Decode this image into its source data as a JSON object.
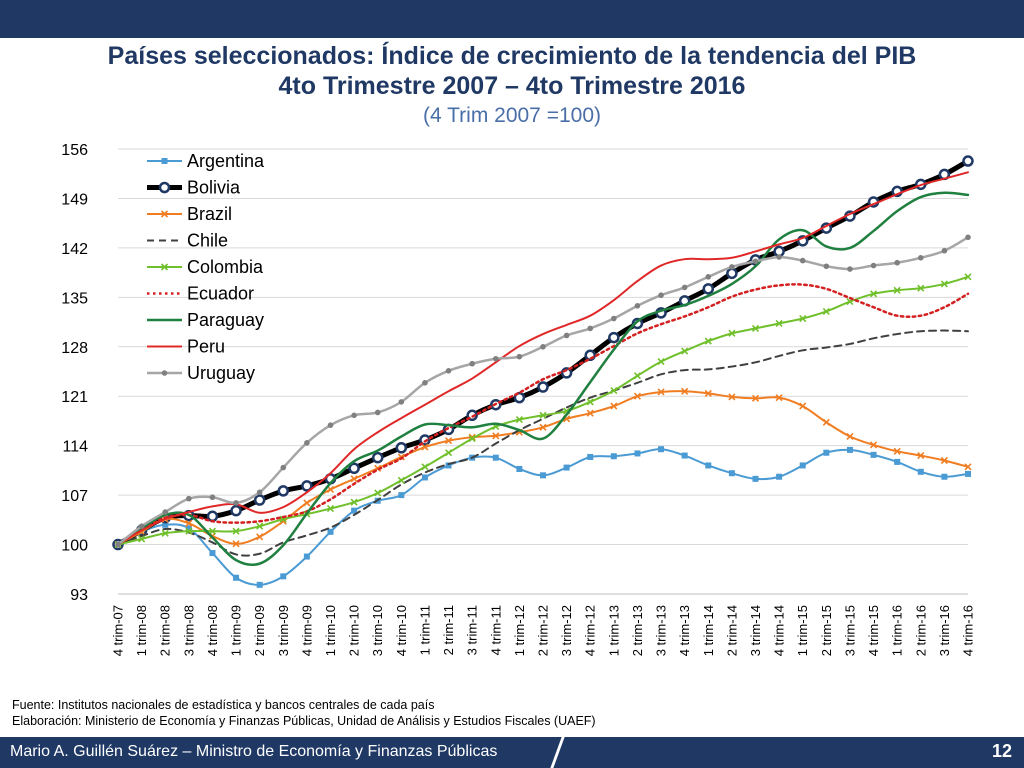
{
  "header": {
    "title_line1": "Países seleccionados: Índice de crecimiento de la tendencia del PIB",
    "title_line2": "4to Trimestre 2007 – 4to Trimestre 2016",
    "subtitle": "(4 Trim 2007 =100)"
  },
  "source": {
    "line1": "Fuente: Institutos nacionales de estadística y bancos centrales de cada país",
    "line2": "Elaboración: Ministerio de Economía y Finanzas Públicas, Unidad de Análisis y Estudios Fiscales (UAEF)"
  },
  "footer": {
    "author": "Mario A. Guillén Suárez – Ministro de Economía y Finanzas Públicas",
    "page": "12"
  },
  "chart_data": {
    "type": "line",
    "title": "Países seleccionados: Índice de crecimiento de la tendencia del PIB",
    "ylim": [
      93,
      156
    ],
    "yticks": [
      93,
      100,
      107,
      114,
      121,
      128,
      135,
      142,
      149,
      156
    ],
    "legend_position": "top-left",
    "categories": [
      "4 trim-07",
      "1 trim-08",
      "2 trim-08",
      "3 trim-08",
      "4 trim-08",
      "1 trim-09",
      "2 trim-09",
      "3 trim-09",
      "4 trim-09",
      "1 trim-10",
      "2 trim-10",
      "3 trim-10",
      "4 trim-10",
      "1 trim-11",
      "2 trim-11",
      "3 trim-11",
      "4 trim-11",
      "1 trim-12",
      "2 trim-12",
      "3 trim-12",
      "4 trim-12",
      "1 trim-13",
      "2 trim-13",
      "3 trim-13",
      "4 trim-13",
      "1 trim-14",
      "2 trim-14",
      "3 trim-14",
      "4 trim-14",
      "1 trim-15",
      "2 trim-15",
      "3 trim-15",
      "4 trim-15",
      "1 trim-16",
      "2 trim-16",
      "3 trim-16",
      "4 trim-16"
    ],
    "series": [
      {
        "name": "Argentina",
        "color": "#4a9ad4",
        "style": "solid",
        "width": 2,
        "marker": "square",
        "values": [
          100,
          101.8,
          102.8,
          102.3,
          98.8,
          95.3,
          94.3,
          95.5,
          98.3,
          101.8,
          104.8,
          106.2,
          107,
          109.5,
          111.2,
          112.3,
          112.3,
          110.7,
          109.8,
          110.9,
          112.4,
          112.5,
          112.9,
          113.5,
          112.6,
          111.2,
          110.1,
          109.3,
          109.6,
          111.2,
          113,
          113.4,
          112.7,
          111.7,
          110.3,
          109.6,
          110
        ]
      },
      {
        "name": "Bolivia",
        "color": "#000000",
        "style": "solid",
        "width": 5,
        "marker": "circle",
        "values": [
          100,
          102,
          103.8,
          104.1,
          104,
          104.8,
          106.3,
          107.6,
          108.3,
          109.3,
          110.8,
          112.3,
          113.7,
          114.8,
          116.3,
          118.3,
          119.8,
          120.8,
          122.3,
          124.3,
          126.8,
          129.3,
          131.3,
          132.8,
          134.5,
          136.2,
          138.4,
          140.3,
          141.5,
          143,
          144.8,
          146.5,
          148.5,
          150,
          151,
          152.4,
          154.3
        ]
      },
      {
        "name": "Brazil",
        "color": "#f07d22",
        "style": "solid",
        "width": 2,
        "marker": "x",
        "values": [
          100,
          101.8,
          103.6,
          103,
          101.2,
          100.1,
          101.1,
          103.3,
          105.9,
          107.8,
          109.3,
          110.8,
          112.4,
          113.8,
          114.7,
          115.2,
          115.4,
          115.9,
          116.6,
          117.8,
          118.6,
          119.6,
          121,
          121.6,
          121.7,
          121.4,
          120.9,
          120.7,
          120.8,
          119.6,
          117.3,
          115.3,
          114.1,
          113.2,
          112.6,
          111.9,
          111
        ]
      },
      {
        "name": "Chile",
        "color": "#404040",
        "style": "dashed",
        "width": 2,
        "marker": "none",
        "values": [
          100,
          101.2,
          102.2,
          101.7,
          100.3,
          98.6,
          98.7,
          100.3,
          101.3,
          102.4,
          104.2,
          106.3,
          108.5,
          110.2,
          111.4,
          112.3,
          114.3,
          116.2,
          117.8,
          119.4,
          120.8,
          121.8,
          122.9,
          124.1,
          124.7,
          124.8,
          125.2,
          125.8,
          126.7,
          127.5,
          127.9,
          128.4,
          129.2,
          129.8,
          130.2,
          130.3,
          130.2
        ]
      },
      {
        "name": "Colombia",
        "color": "#70c02c",
        "style": "solid",
        "width": 2,
        "marker": "x",
        "values": [
          100,
          100.8,
          101.6,
          101.9,
          101.9,
          101.9,
          102.6,
          103.6,
          104.3,
          105.1,
          106,
          107.3,
          109.1,
          111,
          113,
          115,
          116.7,
          117.7,
          118.3,
          118.9,
          120.2,
          121.8,
          123.9,
          125.9,
          127.4,
          128.8,
          129.9,
          130.6,
          131.3,
          132,
          133,
          134.4,
          135.5,
          136,
          136.3,
          136.9,
          137.9
        ]
      },
      {
        "name": "Ecuador",
        "color": "#d42020",
        "style": "dotted",
        "width": 2.5,
        "marker": "none",
        "values": [
          100,
          102.2,
          103.8,
          104.2,
          103.3,
          103.1,
          103.3,
          103.9,
          104.7,
          106.4,
          108.6,
          110.6,
          112.2,
          114.6,
          116.5,
          118.1,
          119.9,
          121.5,
          123.4,
          124.7,
          126.3,
          128.1,
          129.9,
          131.2,
          132.3,
          133.6,
          135.1,
          136.1,
          136.7,
          136.8,
          136.2,
          134.9,
          133.6,
          132.4,
          132.4,
          133.6,
          135.5
        ]
      },
      {
        "name": "Paraguay",
        "color": "#1f8040",
        "style": "solid",
        "width": 2.5,
        "marker": "none",
        "values": [
          100,
          102.3,
          104.2,
          104.2,
          101,
          97.8,
          97.3,
          99.9,
          104.4,
          108.7,
          111.8,
          113.3,
          115.3,
          117,
          116.9,
          116.6,
          117.1,
          116.2,
          115,
          118.4,
          123,
          127.6,
          131.6,
          133.1,
          133.9,
          135.2,
          136.9,
          139.4,
          143.2,
          144.5,
          142.2,
          142,
          144.4,
          147.2,
          149.2,
          149.8,
          149.5
        ]
      },
      {
        "name": "Peru",
        "color": "#e02828",
        "style": "solid",
        "width": 2,
        "marker": "none",
        "values": [
          100,
          102,
          103.6,
          104.6,
          105.4,
          105.7,
          104.5,
          105.3,
          107.4,
          110.1,
          113.5,
          115.9,
          117.9,
          119.8,
          121.7,
          123.5,
          125.8,
          128.1,
          129.8,
          131.1,
          132.4,
          134.6,
          137.3,
          139.5,
          140.4,
          140.4,
          140.6,
          141.5,
          142.5,
          143.4,
          145.1,
          146.8,
          148.2,
          149.6,
          150.9,
          151.8,
          152.7
        ]
      },
      {
        "name": "Uruguay",
        "color": "#a6a6a6",
        "style": "solid",
        "width": 2.5,
        "marker": "circle-small",
        "values": [
          100,
          102.6,
          104.6,
          106.5,
          106.7,
          105.9,
          107.4,
          110.9,
          114.4,
          116.9,
          118.3,
          118.7,
          120.2,
          122.9,
          124.6,
          125.6,
          126.3,
          126.6,
          128,
          129.6,
          130.6,
          132,
          133.8,
          135.3,
          136.4,
          137.9,
          139.3,
          140.1,
          140.7,
          140.2,
          139.4,
          139,
          139.5,
          139.9,
          140.6,
          141.6,
          143.5
        ]
      }
    ]
  }
}
